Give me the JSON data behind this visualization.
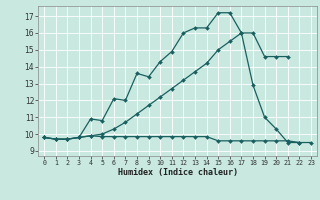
{
  "background_color": "#c8e8e0",
  "grid_color": "#ffffff",
  "line_color": "#1a6060",
  "xlabel": "Humidex (Indice chaleur)",
  "xlim": [
    -0.5,
    23.5
  ],
  "ylim": [
    8.7,
    17.6
  ],
  "yticks": [
    9,
    10,
    11,
    12,
    13,
    14,
    15,
    16,
    17
  ],
  "xticks": [
    0,
    1,
    2,
    3,
    4,
    5,
    6,
    7,
    8,
    9,
    10,
    11,
    12,
    13,
    14,
    15,
    16,
    17,
    18,
    19,
    20,
    21,
    22,
    23
  ],
  "line1_x": [
    0,
    1,
    2,
    3,
    4,
    5,
    6,
    7,
    8,
    9,
    10,
    11,
    12,
    13,
    14,
    15,
    16,
    17,
    18,
    19,
    20,
    21
  ],
  "line1_y": [
    9.8,
    9.7,
    9.7,
    9.8,
    10.9,
    10.8,
    12.1,
    12.0,
    13.6,
    13.4,
    14.3,
    14.9,
    16.0,
    16.3,
    16.3,
    17.2,
    17.2,
    16.0,
    16.0,
    14.6,
    14.6,
    14.6
  ],
  "line2_x": [
    0,
    1,
    2,
    3,
    4,
    5,
    6,
    7,
    8,
    9,
    10,
    11,
    12,
    13,
    14,
    15,
    16,
    17,
    18,
    19,
    20,
    21,
    22
  ],
  "line2_y": [
    9.8,
    9.7,
    9.7,
    9.8,
    9.9,
    10.0,
    10.3,
    10.7,
    11.2,
    11.7,
    12.2,
    12.7,
    13.2,
    13.7,
    14.2,
    15.0,
    15.5,
    16.0,
    12.9,
    11.0,
    10.3,
    9.5,
    9.5
  ],
  "line3_x": [
    0,
    1,
    2,
    3,
    4,
    5,
    6,
    7,
    8,
    9,
    10,
    11,
    12,
    13,
    14,
    15,
    16,
    17,
    18,
    19,
    20,
    21,
    22,
    23
  ],
  "line3_y": [
    9.8,
    9.7,
    9.7,
    9.8,
    9.9,
    9.85,
    9.85,
    9.85,
    9.85,
    9.85,
    9.85,
    9.85,
    9.85,
    9.85,
    9.85,
    9.6,
    9.6,
    9.6,
    9.6,
    9.6,
    9.6,
    9.6,
    9.5,
    9.5
  ]
}
